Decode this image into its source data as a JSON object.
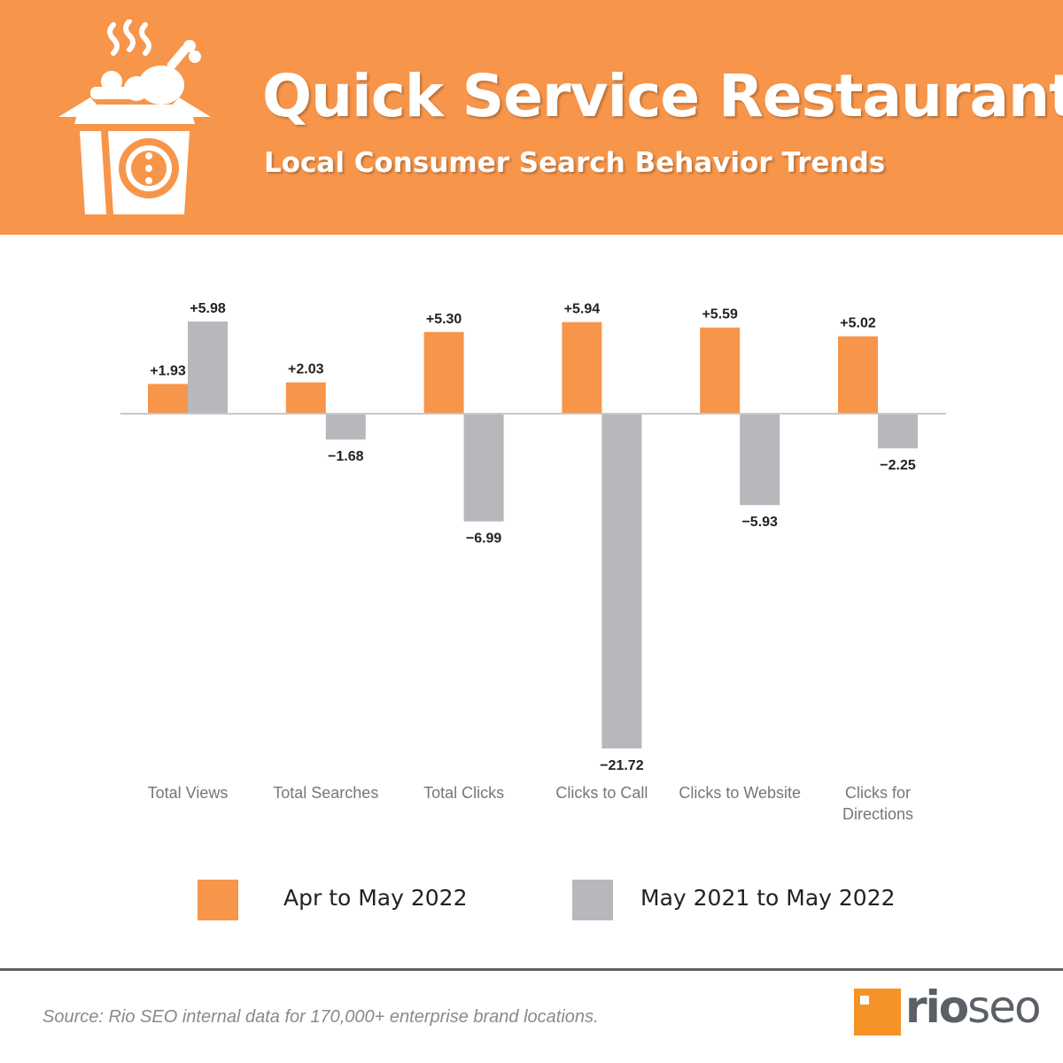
{
  "header": {
    "title": "Quick Service Restaurants",
    "subtitle": "Local Consumer Search Behavior Trends",
    "icon": "food-box-icon"
  },
  "colors": {
    "orange": "#f7954a",
    "gray": "#b7b8bc",
    "axis": "#c8c8c8"
  },
  "chart_data": {
    "type": "bar",
    "title": "",
    "xlabel": "",
    "ylabel": "",
    "ylim": [
      -21.72,
      5.98
    ],
    "grid": false,
    "legend_position": "bottom",
    "categories": [
      "Total Views",
      "Total Searches",
      "Total Clicks",
      "Clicks to Call",
      "Clicks to Website",
      "Clicks for Directions"
    ],
    "series": [
      {
        "name": "Apr to May 2022",
        "color": "#f7954a",
        "values": [
          1.93,
          2.03,
          5.3,
          5.94,
          5.59,
          5.02
        ],
        "labels": [
          "+1.93",
          "+2.03",
          "+5.30",
          "+5.94",
          "+5.59",
          "+5.02"
        ]
      },
      {
        "name": "May 2021 to May 2022",
        "color": "#b7b8bc",
        "values": [
          5.98,
          -1.68,
          -6.99,
          -21.72,
          -5.93,
          -2.25
        ],
        "labels": [
          "+5.98",
          "−1.68",
          "−6.99",
          "−21.72",
          "−5.93",
          "−2.25"
        ]
      }
    ]
  },
  "legend": {
    "items": [
      {
        "label": "Apr to May 2022",
        "color": "#f7954a"
      },
      {
        "label": "May 2021 to May 2022",
        "color": "#b7b8bc"
      }
    ]
  },
  "footer": {
    "source": "Source: Rio SEO internal data for 170,000+ enterprise brand locations.",
    "brand_rio": "rio",
    "brand_seo": "seo"
  }
}
